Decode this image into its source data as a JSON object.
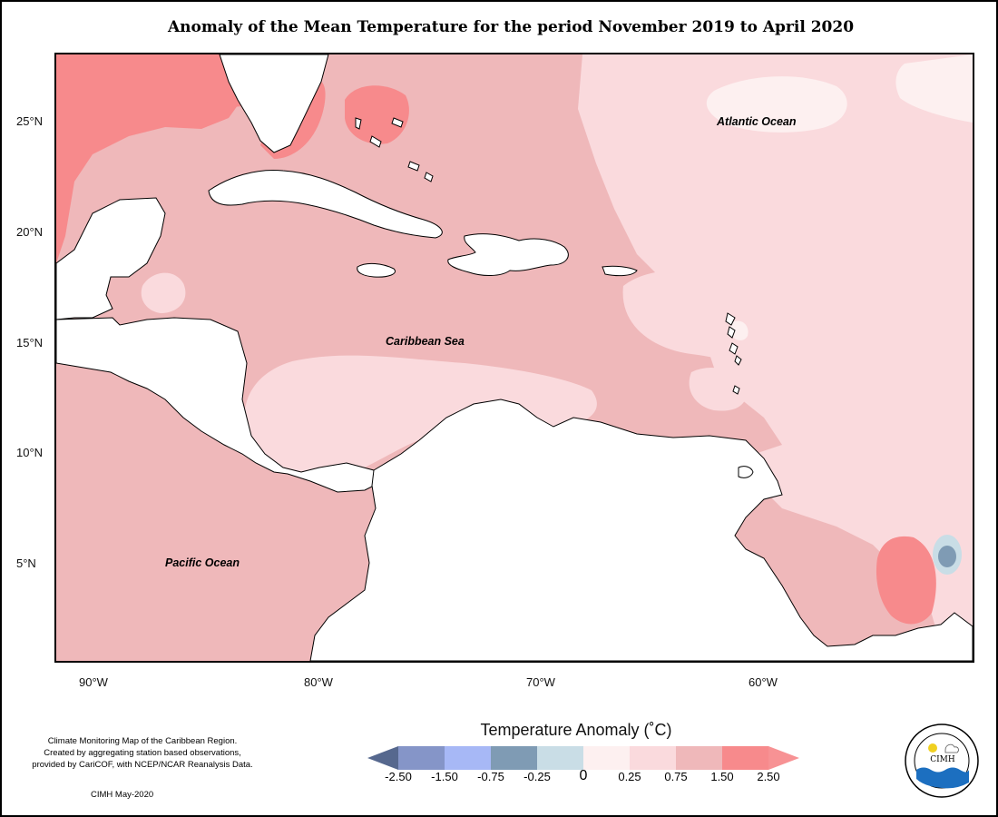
{
  "title": "Anomaly of the Mean Temperature for the period November 2019 to April 2020",
  "map": {
    "lat_labels": [
      "25°N",
      "20°N",
      "15°N",
      "10°N",
      "5°N"
    ],
    "lon_labels": [
      "90°W",
      "80°W",
      "70°W",
      "60°W"
    ],
    "ocean_labels": {
      "atlantic": "Atlantic Ocean",
      "caribbean": "Caribbean Sea",
      "pacific": "Pacific Ocean"
    },
    "colors": {
      "land": "#ffffff",
      "coastline": "#000000",
      "anomaly_0_to_0_25": "#fdf0f0",
      "anomaly_0_25_to_0_75": "#fadadd",
      "anomaly_0_75_to_1_50": "#efb8ba",
      "anomaly_1_50_to_2_50": "#f78a8c",
      "anomaly_neg_0_75_to_neg_0_25": "#7f9bb4",
      "anomaly_neg_0_25_to_0": "#c9dde6"
    }
  },
  "legend": {
    "title": "Temperature Anomaly (˚C)",
    "bins": [
      {
        "from": null,
        "to": -2.5,
        "color": "#56688e"
      },
      {
        "from": -2.5,
        "to": -1.5,
        "color": "#8595c8"
      },
      {
        "from": -1.5,
        "to": -0.75,
        "color": "#a7b8f6"
      },
      {
        "from": -0.75,
        "to": -0.25,
        "color": "#7f9bb4"
      },
      {
        "from": -0.25,
        "to": 0,
        "color": "#c9dde6"
      },
      {
        "from": 0,
        "to": 0.25,
        "color": "#fdf0f0"
      },
      {
        "from": 0.25,
        "to": 0.75,
        "color": "#fadadd"
      },
      {
        "from": 0.75,
        "to": 1.5,
        "color": "#efb8ba"
      },
      {
        "from": 1.5,
        "to": 2.5,
        "color": "#f78a8c"
      },
      {
        "from": 2.5,
        "to": null,
        "color": "#f79294"
      }
    ],
    "tick_labels": [
      "-2.50",
      "-1.50",
      "-0.75",
      "-0.25",
      "0",
      "0.25",
      "0.75",
      "1.50",
      "2.50"
    ]
  },
  "credit": {
    "line1": "Climate Monitoring Map of the Caribbean Region.",
    "line2": "Created by aggregating station based observations,",
    "line3": "provided by CariCOF, with NCEP/NCAR Reanalysis Data.",
    "date": "CIMH May-2020"
  },
  "logo": {
    "text": "CIMH"
  }
}
